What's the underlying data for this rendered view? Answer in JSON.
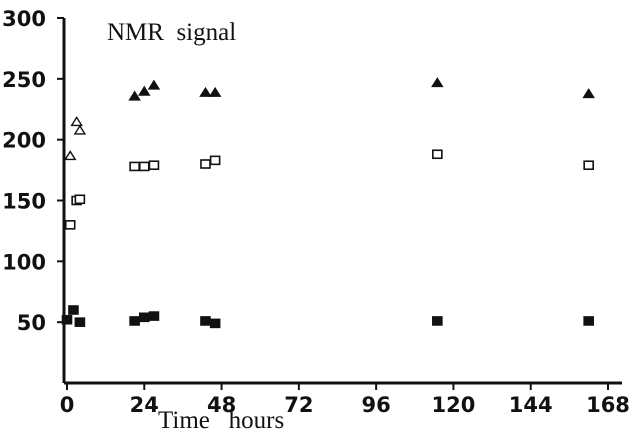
{
  "chart_data": {
    "type": "scatter",
    "title": "",
    "annotation": "NMR  signal",
    "xlabel": "Time   hours",
    "ylabel": "",
    "xlim": [
      0,
      168
    ],
    "ylim": [
      0,
      300
    ],
    "xticks": [
      0,
      24,
      48,
      72,
      96,
      120,
      144,
      168
    ],
    "yticks": [
      50,
      100,
      150,
      200,
      250,
      300
    ],
    "xtick_labels": [
      "0",
      "24",
      "48",
      "72",
      "96",
      "120",
      "144",
      "168"
    ],
    "ytick_labels": [
      "50",
      "100",
      "150",
      "200",
      "250",
      "300"
    ],
    "grid": false,
    "legend": "none",
    "series": [
      {
        "marker": "open-triangle",
        "points": [
          [
            1,
            187
          ],
          [
            3,
            215
          ],
          [
            4,
            208
          ]
        ]
      },
      {
        "marker": "filled-triangle",
        "points": [
          [
            21,
            236
          ],
          [
            24,
            240
          ],
          [
            27,
            245
          ],
          [
            43,
            239
          ],
          [
            46,
            239
          ],
          [
            115,
            247
          ],
          [
            162,
            238
          ]
        ]
      },
      {
        "marker": "open-square",
        "points": [
          [
            1,
            130
          ],
          [
            3,
            150
          ],
          [
            4,
            151
          ],
          [
            21,
            178
          ],
          [
            24,
            178
          ],
          [
            27,
            179
          ],
          [
            43,
            180
          ],
          [
            46,
            183
          ],
          [
            115,
            188
          ],
          [
            162,
            179
          ]
        ]
      },
      {
        "marker": "filled-square",
        "points": [
          [
            0,
            52
          ],
          [
            2,
            60
          ],
          [
            4,
            50
          ],
          [
            21,
            51
          ],
          [
            24,
            54
          ],
          [
            27,
            55
          ],
          [
            43,
            51
          ],
          [
            46,
            49
          ],
          [
            115,
            51
          ],
          [
            162,
            51
          ]
        ]
      }
    ]
  }
}
